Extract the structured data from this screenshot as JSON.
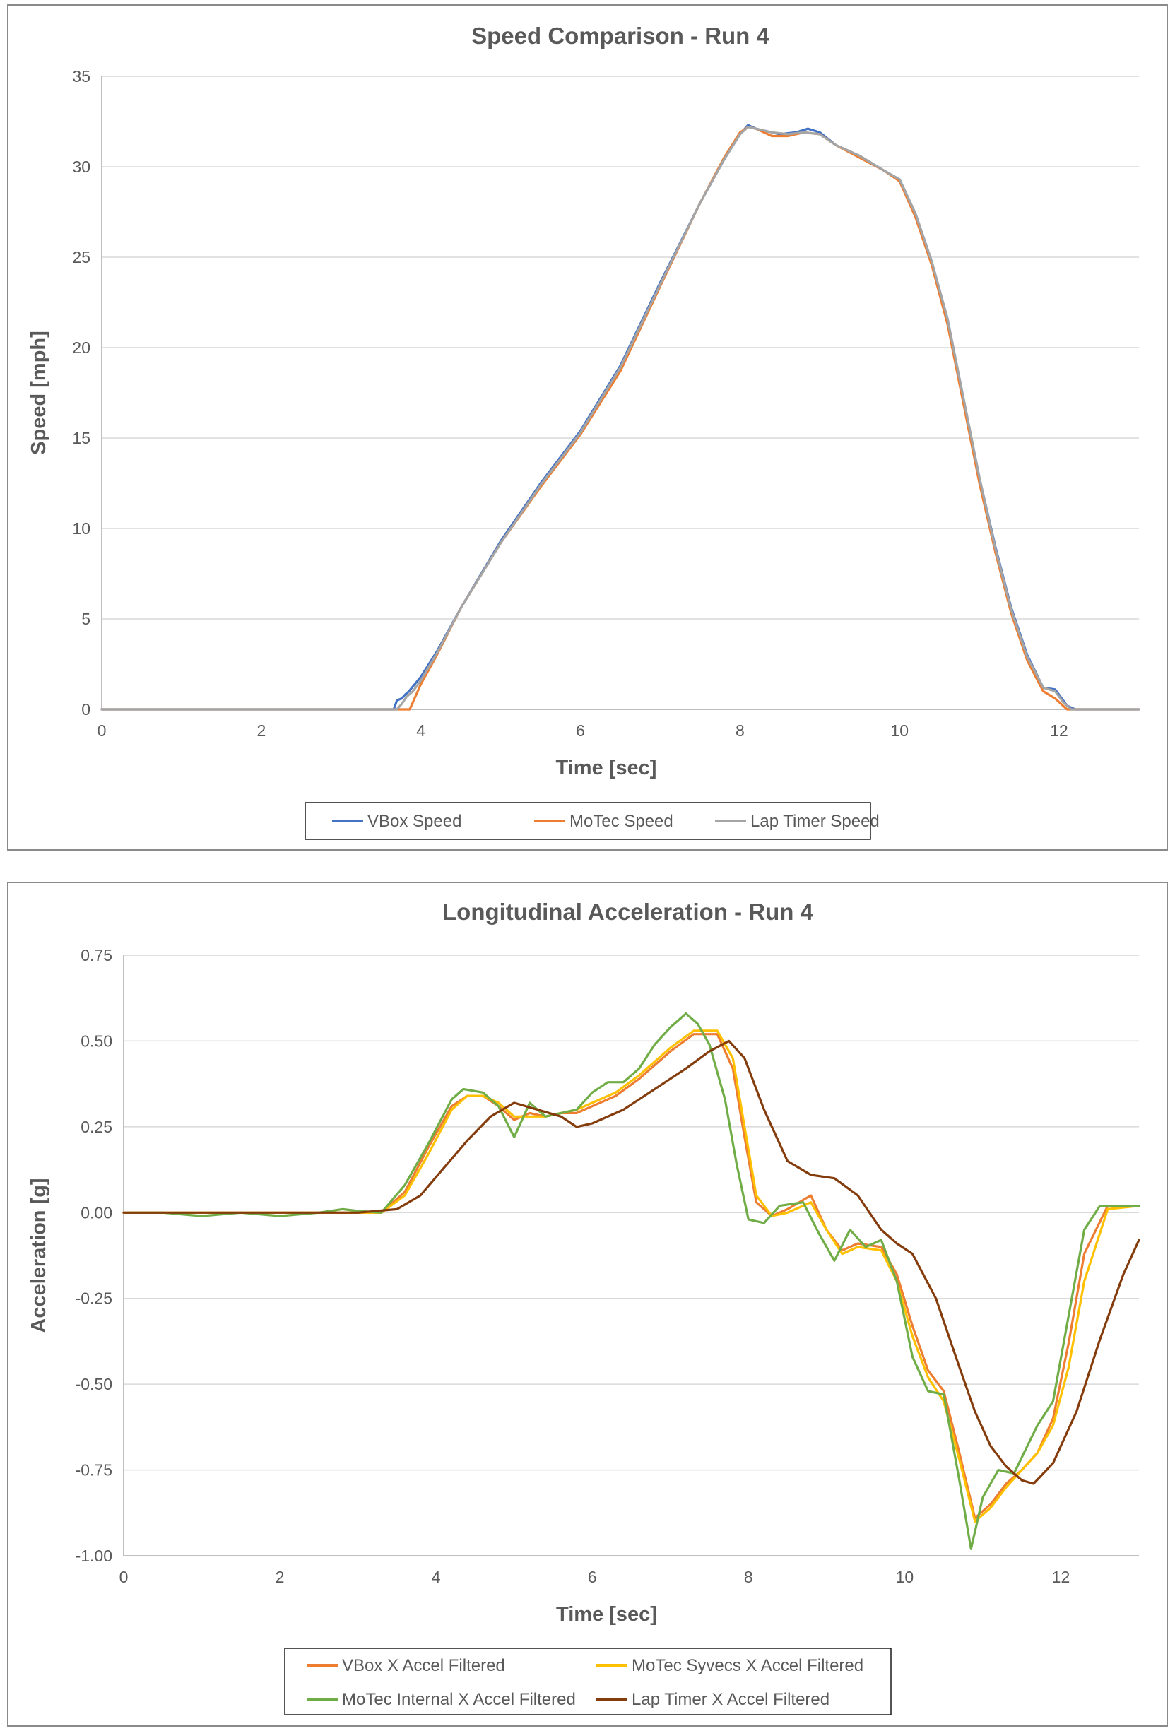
{
  "chart_data": [
    {
      "type": "line",
      "title": "Speed Comparison - Run 4",
      "xlabel": "Time [sec]",
      "ylabel": "Speed [mph]",
      "xlim": [
        0,
        13
      ],
      "ylim": [
        0,
        35
      ],
      "xticks": [
        0,
        2,
        4,
        6,
        8,
        10,
        12
      ],
      "yticks": [
        0,
        5,
        10,
        15,
        20,
        25,
        30,
        35
      ],
      "ytick_labels": [
        "0",
        "5",
        "10",
        "15",
        "20",
        "25",
        "30",
        "35"
      ],
      "grid": true,
      "legend_position": "bottom",
      "legend_columns": 3,
      "series": [
        {
          "name": "VBox Speed",
          "color": "#4472C4",
          "x": [
            0,
            3.66,
            3.7,
            3.76,
            3.8,
            3.85,
            4.0,
            4.2,
            4.5,
            5.0,
            5.5,
            6.0,
            6.5,
            7.0,
            7.5,
            7.8,
            8.0,
            8.1,
            8.2,
            8.3,
            8.5,
            8.7,
            8.85,
            9.0,
            9.2,
            9.5,
            9.8,
            10.0,
            10.2,
            10.4,
            10.6,
            10.8,
            11.0,
            11.2,
            11.4,
            11.6,
            11.8,
            11.95,
            12.05,
            12.1,
            12.15,
            12.2,
            13
          ],
          "y": [
            0,
            0,
            0.5,
            0.6,
            0.8,
            1.0,
            1.8,
            3.2,
            5.6,
            9.3,
            12.5,
            15.4,
            19.0,
            23.6,
            28.0,
            30.4,
            31.8,
            32.3,
            32.1,
            32.0,
            31.8,
            31.9,
            32.1,
            31.9,
            31.2,
            30.6,
            29.8,
            29.3,
            27.4,
            24.8,
            21.6,
            17.2,
            12.8,
            9.0,
            5.6,
            3.0,
            1.2,
            1.1,
            0.5,
            0.2,
            0.1,
            0,
            0
          ]
        },
        {
          "name": "MoTec Speed",
          "color": "#ED7D31",
          "x": [
            0,
            3.86,
            3.92,
            4.0,
            4.2,
            4.5,
            5.0,
            5.5,
            6.0,
            6.5,
            7.0,
            7.5,
            7.8,
            8.0,
            8.1,
            8.2,
            8.4,
            8.6,
            8.8,
            9.0,
            9.2,
            9.5,
            9.8,
            10.0,
            10.2,
            10.4,
            10.6,
            10.8,
            11.0,
            11.2,
            11.4,
            11.6,
            11.8,
            11.95,
            12.05,
            12.1,
            13
          ],
          "y": [
            0,
            0,
            0.6,
            1.4,
            3.0,
            5.6,
            9.2,
            12.3,
            15.2,
            18.7,
            23.4,
            28.0,
            30.5,
            31.9,
            32.2,
            32.1,
            31.7,
            31.7,
            31.9,
            31.8,
            31.2,
            30.5,
            29.8,
            29.2,
            27.2,
            24.6,
            21.3,
            16.9,
            12.5,
            8.7,
            5.3,
            2.7,
            1.0,
            0.6,
            0.2,
            0,
            0
          ]
        },
        {
          "name": "Lap Timer Speed",
          "color": "#A5A5A5",
          "x": [
            0,
            3.7,
            3.76,
            3.82,
            3.9,
            4.0,
            4.2,
            4.5,
            5.0,
            5.5,
            6.0,
            6.5,
            7.0,
            7.5,
            7.8,
            8.0,
            8.1,
            8.2,
            8.4,
            8.6,
            8.8,
            9.0,
            9.2,
            9.5,
            9.8,
            10.0,
            10.2,
            10.4,
            10.6,
            10.8,
            11.0,
            11.2,
            11.4,
            11.6,
            11.8,
            11.95,
            12.05,
            12.1,
            12.15,
            13
          ],
          "y": [
            0,
            0,
            0.3,
            0.7,
            1.0,
            1.6,
            3.1,
            5.6,
            9.2,
            12.4,
            15.3,
            18.9,
            23.5,
            28.0,
            30.4,
            31.8,
            32.2,
            32.1,
            31.9,
            31.8,
            31.9,
            31.8,
            31.2,
            30.6,
            29.8,
            29.3,
            27.4,
            24.8,
            21.6,
            17.2,
            12.8,
            8.9,
            5.5,
            2.9,
            1.2,
            1.0,
            0.4,
            0.2,
            0,
            0
          ]
        }
      ]
    },
    {
      "type": "line",
      "title": "Longitudinal Acceleration - Run 4",
      "xlabel": "Time [sec]",
      "ylabel": "Acceleration [g]",
      "xlim": [
        0,
        13
      ],
      "ylim": [
        -1.0,
        0.75
      ],
      "xticks": [
        0,
        2,
        4,
        6,
        8,
        10,
        12
      ],
      "yticks": [
        -1.0,
        -0.75,
        -0.5,
        -0.25,
        0,
        0.25,
        0.5,
        0.75
      ],
      "ytick_labels": [
        "-1.00",
        "-0.75",
        "-0.50",
        "-0.25",
        "0.00",
        "0.25",
        "0.50",
        "0.75"
      ],
      "grid": true,
      "legend_position": "bottom",
      "legend_columns": 2,
      "series": [
        {
          "name": "VBox X Accel Filtered",
          "color": "#ED7D31",
          "x": [
            0,
            1.0,
            2.0,
            3.0,
            3.3,
            3.6,
            3.9,
            4.2,
            4.4,
            4.6,
            4.8,
            5.0,
            5.2,
            5.4,
            5.6,
            5.8,
            6.0,
            6.3,
            6.6,
            7.0,
            7.3,
            7.6,
            7.8,
            7.95,
            8.1,
            8.3,
            8.5,
            8.8,
            9.0,
            9.2,
            9.4,
            9.7,
            9.9,
            10.1,
            10.3,
            10.5,
            10.7,
            10.9,
            11.1,
            11.3,
            11.5,
            11.7,
            11.9,
            12.1,
            12.3,
            12.6,
            13.0
          ],
          "y": [
            0,
            0,
            0,
            0,
            0.0,
            0.06,
            0.19,
            0.31,
            0.34,
            0.34,
            0.31,
            0.27,
            0.29,
            0.28,
            0.29,
            0.29,
            0.31,
            0.34,
            0.39,
            0.47,
            0.52,
            0.52,
            0.42,
            0.22,
            0.03,
            -0.01,
            0.01,
            0.05,
            -0.05,
            -0.11,
            -0.09,
            -0.1,
            -0.18,
            -0.33,
            -0.46,
            -0.52,
            -0.7,
            -0.89,
            -0.85,
            -0.79,
            -0.75,
            -0.7,
            -0.6,
            -0.38,
            -0.12,
            0.02,
            0.02
          ]
        },
        {
          "name": "MoTec Syvecs X Accel Filtered",
          "color": "#FFC000",
          "x": [
            0,
            1.0,
            2.0,
            3.0,
            3.3,
            3.6,
            3.9,
            4.2,
            4.4,
            4.6,
            4.8,
            5.0,
            5.2,
            5.4,
            5.6,
            5.8,
            6.0,
            6.3,
            6.6,
            7.0,
            7.3,
            7.6,
            7.8,
            7.95,
            8.1,
            8.3,
            8.5,
            8.8,
            9.0,
            9.2,
            9.4,
            9.7,
            9.9,
            10.1,
            10.3,
            10.5,
            10.7,
            10.9,
            11.1,
            11.3,
            11.5,
            11.7,
            11.9,
            12.1,
            12.3,
            12.6,
            13.0
          ],
          "y": [
            0,
            0,
            0,
            0,
            0.0,
            0.05,
            0.17,
            0.3,
            0.34,
            0.34,
            0.32,
            0.28,
            0.28,
            0.28,
            0.29,
            0.3,
            0.32,
            0.35,
            0.4,
            0.48,
            0.53,
            0.53,
            0.45,
            0.25,
            0.05,
            -0.01,
            0.0,
            0.03,
            -0.05,
            -0.12,
            -0.1,
            -0.11,
            -0.2,
            -0.36,
            -0.48,
            -0.55,
            -0.72,
            -0.9,
            -0.86,
            -0.8,
            -0.75,
            -0.7,
            -0.62,
            -0.45,
            -0.2,
            0.01,
            0.02
          ]
        },
        {
          "name": "MoTec Internal X Accel Filtered",
          "color": "#70AD47",
          "x": [
            0,
            0.5,
            1.0,
            1.5,
            2.0,
            2.5,
            2.8,
            3.0,
            3.3,
            3.6,
            3.9,
            4.2,
            4.35,
            4.6,
            4.8,
            5.0,
            5.2,
            5.4,
            5.6,
            5.8,
            6.0,
            6.2,
            6.4,
            6.6,
            6.8,
            7.0,
            7.2,
            7.35,
            7.5,
            7.7,
            7.85,
            8.0,
            8.2,
            8.4,
            8.7,
            8.9,
            9.1,
            9.3,
            9.5,
            9.7,
            9.9,
            10.1,
            10.3,
            10.5,
            10.7,
            10.85,
            11.0,
            11.2,
            11.4,
            11.7,
            11.9,
            12.1,
            12.3,
            12.5,
            12.8,
            13.0
          ],
          "y": [
            0,
            0,
            -0.01,
            0,
            -0.01,
            0,
            0.01,
            0.005,
            0.0,
            0.08,
            0.2,
            0.33,
            0.36,
            0.35,
            0.31,
            0.22,
            0.32,
            0.28,
            0.29,
            0.3,
            0.35,
            0.38,
            0.38,
            0.42,
            0.49,
            0.54,
            0.58,
            0.55,
            0.49,
            0.33,
            0.14,
            -0.02,
            -0.03,
            0.02,
            0.03,
            -0.06,
            -0.14,
            -0.05,
            -0.1,
            -0.08,
            -0.2,
            -0.42,
            -0.52,
            -0.53,
            -0.78,
            -0.98,
            -0.83,
            -0.75,
            -0.76,
            -0.62,
            -0.55,
            -0.3,
            -0.05,
            0.02,
            0.02,
            0.02
          ]
        },
        {
          "name": "Lap Timer X Accel Filtered",
          "color": "#843C0C",
          "x": [
            0,
            1.0,
            2.0,
            3.0,
            3.5,
            3.8,
            4.1,
            4.4,
            4.7,
            5.0,
            5.3,
            5.6,
            5.8,
            6.0,
            6.4,
            6.8,
            7.2,
            7.5,
            7.75,
            7.95,
            8.2,
            8.5,
            8.8,
            9.1,
            9.4,
            9.7,
            9.9,
            10.1,
            10.4,
            10.7,
            10.9,
            11.1,
            11.3,
            11.5,
            11.65,
            11.9,
            12.2,
            12.5,
            12.8,
            13.0
          ],
          "y": [
            0,
            0,
            0,
            0,
            0.01,
            0.05,
            0.13,
            0.21,
            0.28,
            0.32,
            0.3,
            0.28,
            0.25,
            0.26,
            0.3,
            0.36,
            0.42,
            0.47,
            0.5,
            0.45,
            0.3,
            0.15,
            0.11,
            0.1,
            0.05,
            -0.05,
            -0.09,
            -0.12,
            -0.25,
            -0.45,
            -0.58,
            -0.68,
            -0.74,
            -0.78,
            -0.79,
            -0.73,
            -0.58,
            -0.37,
            -0.18,
            -0.08
          ]
        }
      ]
    }
  ]
}
